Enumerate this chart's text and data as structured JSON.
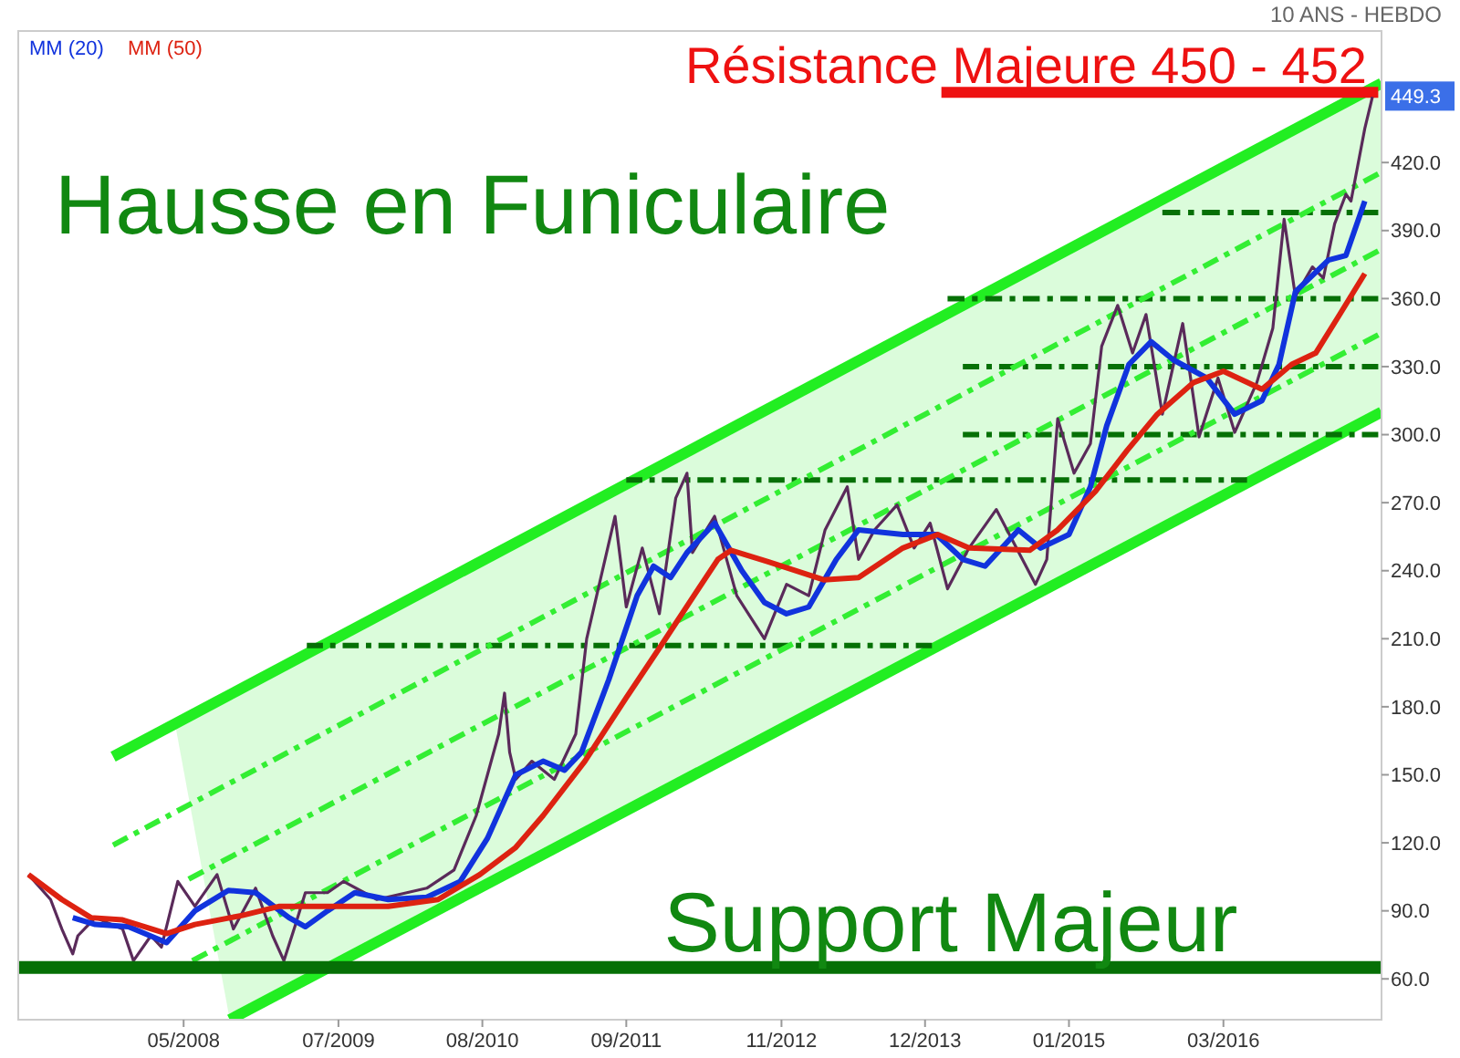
{
  "chart_data": {
    "type": "line",
    "annotations": [
      "10 ANS - HEBDO",
      "Hausse en Funiculaire",
      {
        "text": "Support Majeur",
        "x": "2014-02-10",
        "y": 65
      },
      {
        "text": "Résistance Majeure 450 - 452",
        "x": "2014-09-05",
        "y": 451
      },
      "449.3"
    ],
    "xlim": [
      "2007-02-01",
      "2017-05-10"
    ],
    "xticks": [
      {
        "value": "2008-05-01",
        "label": "05/2008"
      },
      {
        "value": "2009-07-01",
        "label": "07/2009"
      },
      {
        "value": "2010-08-01",
        "label": "08/2010"
      },
      {
        "value": "2011-09-01",
        "label": "09/2011"
      },
      {
        "value": "2012-11-01",
        "label": "11/2012"
      },
      {
        "value": "2013-12-01",
        "label": "12/2013"
      },
      {
        "value": "2015-01-01",
        "label": "01/2015"
      },
      {
        "value": "2016-03-01",
        "label": "03/2016"
      }
    ],
    "ylim": [
      42,
      478
    ],
    "yticks": [
      {
        "value": 60,
        "label": "60.0"
      },
      {
        "value": 90,
        "label": "90.0"
      },
      {
        "value": 120,
        "label": "120.0"
      },
      {
        "value": 150,
        "label": "150.0"
      },
      {
        "value": 180,
        "label": "180.0"
      },
      {
        "value": 210,
        "label": "210.0"
      },
      {
        "value": 240,
        "label": "240.0"
      },
      {
        "value": 270,
        "label": "270.0"
      },
      {
        "value": 300,
        "label": "300.0"
      },
      {
        "value": 330,
        "label": "330.0"
      },
      {
        "value": 360,
        "label": "360.0"
      },
      {
        "value": 390,
        "label": "390.0"
      },
      {
        "value": 420,
        "label": "420.0"
      }
    ],
    "grid": false,
    "legend": "top left",
    "marker": "none",
    "ref_lines": [
      {
        "axis": "y",
        "value": 65,
        "color": "#067006"
      }
    ],
    "series": [
      {
        "color": "#22ee22",
        "line_style": "solid",
        "x": [
          "2007-10-20",
          "2017-05-10"
        ],
        "values": [
          158,
          455
        ]
      },
      {
        "color": "#22ee22",
        "line_style": "solid",
        "x": [
          "2008-09-05",
          "2017-05-10"
        ],
        "values": [
          42,
          310
        ]
      },
      {
        "color": "#067006",
        "line_style": "dashed",
        "x": [
          "2009-04-05",
          "2013-12-20"
        ],
        "values": [
          207,
          207
        ]
      },
      {
        "color": "#067006",
        "line_style": "dashed",
        "x": [
          "2011-09-01",
          "2016-05-05"
        ],
        "values": [
          280,
          280
        ]
      },
      {
        "color": "#067006",
        "line_style": "dashed",
        "x": [
          "2014-03-15",
          "2017-05-01"
        ],
        "values": [
          300,
          300
        ]
      },
      {
        "color": "#067006",
        "line_style": "dashed",
        "x": [
          "2014-03-15",
          "2017-05-01"
        ],
        "values": [
          330,
          330
        ]
      },
      {
        "color": "#067006",
        "line_style": "dashed",
        "x": [
          "2014-02-01",
          "2017-05-01"
        ],
        "values": [
          360,
          360
        ]
      },
      {
        "color": "#067006",
        "line_style": "dashed",
        "x": [
          "2015-09-15",
          "2017-05-01"
        ],
        "values": [
          398,
          398
        ]
      },
      {
        "color": "#ee1111",
        "line_style": "solid",
        "x": [
          "2014-01-15",
          "2017-05-01"
        ],
        "values": [
          451,
          451
        ]
      },
      {
        "color": "#33ee33",
        "line_style": "dashed",
        "x": [
          "2007-10-20",
          "2017-05-01"
        ],
        "values": [
          119,
          415
        ]
      },
      {
        "color": "#33ee33",
        "line_style": "dashed",
        "x": [
          "2008-05-15",
          "2017-05-01"
        ],
        "values": [
          104,
          381
        ]
      },
      {
        "color": "#33ee33",
        "line_style": "dashed",
        "x": [
          "2008-05-25",
          "2017-05-01"
        ],
        "values": [
          68,
          344
        ]
      },
      {
        "color": "#5a2a5a",
        "line_style": "solid",
        "x": [
          "2007-03-01",
          "2007-05-01",
          "2007-06-01",
          "2007-07-01",
          "2007-07-15",
          "2007-09-01",
          "2007-11-15",
          "2007-12-15",
          "2008-02-01",
          "2008-03-01",
          "2008-04-15",
          "2008-06-01",
          "2008-08-01",
          "2008-09-15",
          "2008-11-15",
          "2009-01-01",
          "2009-02-01",
          "2009-03-01",
          "2009-04-01",
          "2009-06-01",
          "2009-07-15",
          "2009-10-15",
          "2010-03-01",
          "2010-05-15",
          "2010-07-15",
          "2010-09-15",
          "2010-10-01",
          "2010-10-15",
          "2010-11-01",
          "2010-12-15",
          "2011-02-15",
          "2011-04-15",
          "2011-05-15",
          "2011-08-01",
          "2011-09-01",
          "2011-10-15",
          "2011-12-01",
          "2012-01-15",
          "2012-02-15",
          "2012-03-01",
          "2012-05-01",
          "2012-07-01",
          "2012-09-15",
          "2012-11-15",
          "2013-01-15",
          "2013-03-01",
          "2013-05-01",
          "2013-06-01",
          "2013-07-15",
          "2013-09-15",
          "2013-11-01",
          "2013-12-15",
          "2014-02-01",
          "2014-04-01",
          "2014-06-15",
          "2014-10-01",
          "2014-11-01",
          "2014-12-01",
          "2015-01-15",
          "2015-03-01",
          "2015-04-01",
          "2015-05-15",
          "2015-06-25",
          "2015-08-01",
          "2015-09-15",
          "2015-11-10",
          "2015-12-25",
          "2016-02-15",
          "2016-04-01",
          "2016-06-01",
          "2016-07-15",
          "2016-08-15",
          "2016-09-15",
          "2016-11-01",
          "2016-12-01",
          "2017-01-01",
          "2017-02-01",
          "2017-02-15",
          "2017-03-25",
          "2017-04-15"
        ],
        "values": [
          106,
          95,
          82,
          71,
          79,
          87,
          82,
          68,
          79,
          74,
          103,
          92,
          106,
          82,
          100,
          79,
          68,
          82,
          98,
          98,
          103,
          95,
          100,
          108,
          132,
          168,
          186,
          160,
          148,
          156,
          148,
          168,
          210,
          264,
          224,
          250,
          221,
          272,
          283,
          248,
          264,
          229,
          210,
          234,
          229,
          258,
          277,
          245,
          258,
          269,
          250,
          261,
          232,
          250,
          267,
          234,
          245,
          307,
          283,
          296,
          339,
          357,
          336,
          353,
          309,
          349,
          299,
          325,
          301,
          323,
          347,
          395,
          361,
          374,
          369,
          393,
          406,
          403,
          435,
          449
        ]
      },
      {
        "name": "MM (20)",
        "color": "#1133dd",
        "line_style": "solid",
        "x": [
          "2007-07-01",
          "2007-09-01",
          "2007-12-01",
          "2008-03-15",
          "2008-06-01",
          "2008-09-01",
          "2008-11-15",
          "2009-02-15",
          "2009-04-01",
          "2009-06-01",
          "2009-08-15",
          "2009-11-15",
          "2010-03-01",
          "2010-06-01",
          "2010-08-15",
          "2010-11-01",
          "2011-01-15",
          "2011-03-15",
          "2011-05-01",
          "2011-07-15",
          "2011-10-01",
          "2011-11-15",
          "2012-01-01",
          "2012-02-15",
          "2012-05-01",
          "2012-07-15",
          "2012-09-15",
          "2012-11-15",
          "2013-01-15",
          "2013-04-01",
          "2013-06-01",
          "2013-10-01",
          "2014-01-01",
          "2014-03-15",
          "2014-05-15",
          "2014-08-15",
          "2014-10-15",
          "2015-01-01",
          "2015-03-01",
          "2015-04-15",
          "2015-06-15",
          "2015-08-15",
          "2015-10-15",
          "2016-01-15",
          "2016-04-01",
          "2016-06-15",
          "2016-08-01",
          "2016-09-15",
          "2016-12-15",
          "2017-02-01",
          "2017-03-25"
        ],
        "values": [
          87,
          84,
          83,
          76,
          90,
          99,
          98,
          87,
          83,
          90,
          98,
          95,
          96,
          103,
          122,
          150,
          156,
          152,
          160,
          192,
          229,
          242,
          237,
          248,
          261,
          240,
          226,
          221,
          224,
          245,
          258,
          256,
          256,
          245,
          242,
          258,
          250,
          256,
          277,
          304,
          331,
          341,
          333,
          325,
          309,
          315,
          331,
          363,
          377,
          379,
          403
        ]
      },
      {
        "name": "MM (50)",
        "color": "#dd2211",
        "line_style": "solid",
        "x": [
          "2007-03-01",
          "2007-06-01",
          "2007-08-20",
          "2007-11-15",
          "2008-03-15",
          "2008-06-01",
          "2008-10-10",
          "2009-01-20",
          "2009-06-05",
          "2009-11-15",
          "2010-04-01",
          "2010-07-25",
          "2010-11-01",
          "2011-01-15",
          "2011-05-10",
          "2011-09-01",
          "2011-12-10",
          "2012-03-05",
          "2012-05-10",
          "2012-06-15",
          "2012-09-25",
          "2013-02-25",
          "2013-06-01",
          "2013-10-01",
          "2014-01-05",
          "2014-04-01",
          "2014-09-15",
          "2014-12-01",
          "2015-03-15",
          "2015-06-10",
          "2015-09-01",
          "2015-12-10",
          "2016-03-01",
          "2016-06-15",
          "2016-09-05",
          "2016-11-10",
          "2017-01-15",
          "2017-03-25"
        ],
        "values": [
          106,
          95,
          87,
          86,
          80,
          84,
          88,
          92,
          92,
          92,
          95,
          106,
          118,
          132,
          156,
          184,
          208,
          229,
          245,
          249,
          244,
          236,
          237,
          250,
          256,
          250,
          249,
          258,
          275,
          293,
          309,
          323,
          328,
          320,
          331,
          336,
          353,
          371
        ]
      }
    ]
  }
}
